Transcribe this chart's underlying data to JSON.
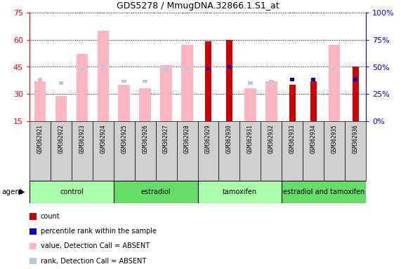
{
  "title": "GDS5278 / MmugDNA.32866.1.S1_at",
  "samples": [
    "GSM362921",
    "GSM362922",
    "GSM362923",
    "GSM362924",
    "GSM362925",
    "GSM362926",
    "GSM362927",
    "GSM362928",
    "GSM362929",
    "GSM362930",
    "GSM362931",
    "GSM362932",
    "GSM362933",
    "GSM362934",
    "GSM362935",
    "GSM362936"
  ],
  "groups": [
    {
      "label": "control",
      "start": 0,
      "end": 3
    },
    {
      "label": "estradiol",
      "start": 4,
      "end": 7
    },
    {
      "label": "tamoxifen",
      "start": 8,
      "end": 11
    },
    {
      "label": "estradiol and tamoxifen",
      "start": 12,
      "end": 15
    }
  ],
  "value_absent": [
    37,
    29,
    52,
    65,
    35,
    33,
    46,
    57,
    null,
    null,
    33,
    37,
    null,
    null,
    57,
    null
  ],
  "rank_absent": [
    38,
    36,
    44,
    45,
    37,
    37,
    43,
    44,
    null,
    null,
    36,
    37,
    null,
    null,
    44,
    null
  ],
  "count_present": [
    null,
    null,
    null,
    null,
    null,
    null,
    null,
    null,
    59,
    60,
    null,
    null,
    35,
    37,
    null,
    45
  ],
  "rank_present": [
    null,
    null,
    null,
    null,
    null,
    null,
    null,
    null,
    44,
    45,
    null,
    null,
    38,
    38,
    null,
    38
  ],
  "ylim": [
    15,
    75
  ],
  "yticks_left": [
    15,
    30,
    45,
    60,
    75
  ],
  "yticks_right_vals": [
    15,
    30,
    45,
    60,
    75
  ],
  "yticks_right_labels": [
    "0%",
    "25%",
    "50%",
    "75%",
    "100%"
  ],
  "color_value_absent": "#FFB6C1",
  "color_rank_absent": "#B8C8E0",
  "color_count_present": "#CC0000",
  "color_rank_present": "#0000BB",
  "group_color_light": "#AAFFAA",
  "group_color_dark": "#66DD66",
  "cell_bg": "#D0D0D0",
  "legend": [
    {
      "color": "#CC0000",
      "label": "count"
    },
    {
      "color": "#0000BB",
      "label": "percentile rank within the sample"
    },
    {
      "color": "#FFB6C1",
      "label": "value, Detection Call = ABSENT"
    },
    {
      "color": "#B8C8E0",
      "label": "rank, Detection Call = ABSENT"
    }
  ]
}
